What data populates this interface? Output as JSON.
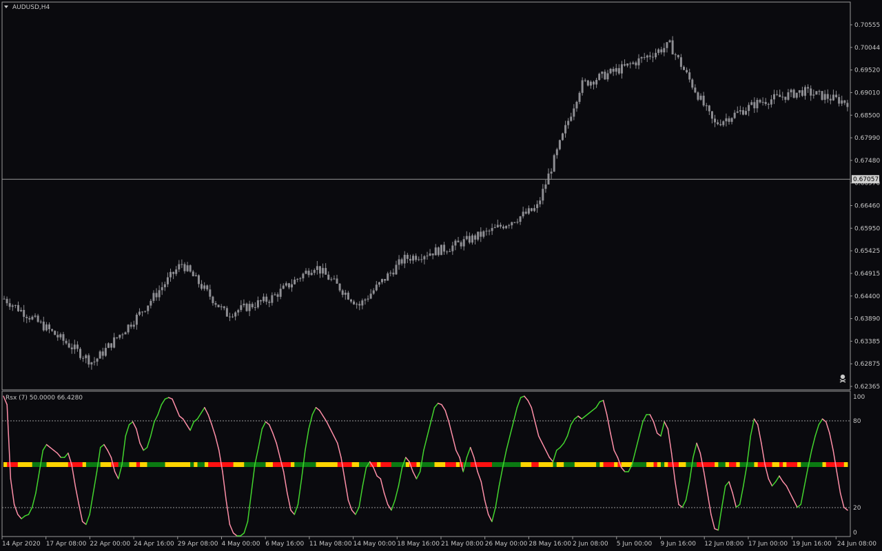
{
  "window": {
    "symbol_label": "AUDUSD,H4"
  },
  "colors": {
    "background": "#0a0a0e",
    "candle": "#8e8e93",
    "axis_text": "#c8c8c8",
    "grid": "#9a9a9a",
    "rsx_up": "#43d62e",
    "rsx_down": "#ff8fa8",
    "state_neutral": "#ffd400",
    "state_bull": "#0b7a12",
    "state_bear": "#ff1010"
  },
  "main": {
    "price_axis_labels": [
      "0.70555",
      "0.70044",
      "0.69520",
      "0.69010",
      "0.68500",
      "0.67990",
      "0.67480",
      "0.66970",
      "0.66460",
      "0.65950",
      "0.65425",
      "0.64915",
      "0.64400",
      "0.63890",
      "0.63385",
      "0.62875",
      "0.62365"
    ],
    "price_axis_min": 0.62365,
    "price_axis_max": 0.70555,
    "current_price": "0.67057",
    "current_price_value": 0.67057
  },
  "indicator": {
    "label": "Rsx (7) 50.0000 66.4280",
    "axis_labels": [
      "100",
      "80",
      "20",
      "0"
    ],
    "levels": [
      0,
      20,
      80,
      100
    ]
  },
  "time_axis_labels": [
    "14 Apr 2020",
    "17 Apr 08:00",
    "22 Apr 00:00",
    "24 Apr 16:00",
    "29 Apr 08:00",
    "4 May 00:00",
    "6 May 16:00",
    "11 May 08:00",
    "14 May 00:00",
    "18 May 16:00",
    "21 May 08:00",
    "26 May 00:00",
    "28 May 16:00",
    "2 Jun 08:00",
    "5 Jun 00:00",
    "9 Jun 16:00",
    "12 Jun 08:00",
    "17 Jun 00:00",
    "19 Jun 16:00",
    "24 Jun 08:00"
  ],
  "chart_data": {
    "type": "candlestick",
    "symbol": "AUDUSD",
    "timeframe": "H4",
    "price_range": [
      0.62365,
      0.70555
    ],
    "price_trend_points": [
      {
        "t": "14 Apr 2020",
        "price": 0.6435
      },
      {
        "t": "17 Apr 08:00",
        "price": 0.6365
      },
      {
        "t": "22 Apr 00:00",
        "price": 0.629
      },
      {
        "t": "24 Apr 16:00",
        "price": 0.6395
      },
      {
        "t": "29 Apr 08:00",
        "price": 0.6515
      },
      {
        "t": "4 May 00:00",
        "price": 0.64
      },
      {
        "t": "6 May 16:00",
        "price": 0.6435
      },
      {
        "t": "11 May 08:00",
        "price": 0.651
      },
      {
        "t": "14 May 00:00",
        "price": 0.642
      },
      {
        "t": "18 May 16:00",
        "price": 0.6525
      },
      {
        "t": "21 May 08:00",
        "price": 0.655
      },
      {
        "t": "26 May 00:00",
        "price": 0.659
      },
      {
        "t": "28 May 16:00",
        "price": 0.664
      },
      {
        "t": "2 Jun 08:00",
        "price": 0.692
      },
      {
        "t": "5 Jun 00:00",
        "price": 0.696
      },
      {
        "t": "9 Jun 16:00",
        "price": 0.701
      },
      {
        "t": "12 Jun 08:00",
        "price": 0.683
      },
      {
        "t": "17 Jun 00:00",
        "price": 0.688
      },
      {
        "t": "19 Jun 16:00",
        "price": 0.6905
      },
      {
        "t": "24 Jun 08:00",
        "price": 0.688
      }
    ],
    "indicator": {
      "name": "Rsx (7)",
      "range": [
        0,
        100
      ],
      "levels": [
        20,
        80
      ],
      "values": [
        98,
        92,
        40,
        22,
        15,
        12,
        14,
        15,
        20,
        30,
        45,
        60,
        64,
        62,
        60,
        58,
        55,
        55,
        58,
        50,
        35,
        22,
        10,
        8,
        15,
        30,
        45,
        62,
        64,
        60,
        55,
        45,
        40,
        50,
        70,
        78,
        80,
        75,
        65,
        60,
        62,
        70,
        80,
        85,
        92,
        96,
        97,
        96,
        90,
        84,
        82,
        78,
        74,
        80,
        82,
        86,
        90,
        85,
        78,
        70,
        60,
        45,
        25,
        8,
        2,
        0,
        0,
        2,
        10,
        30,
        50,
        62,
        75,
        80,
        78,
        72,
        65,
        55,
        45,
        30,
        18,
        15,
        22,
        40,
        60,
        75,
        85,
        90,
        88,
        84,
        80,
        75,
        70,
        65,
        55,
        40,
        25,
        18,
        15,
        20,
        35,
        48,
        52,
        48,
        42,
        40,
        30,
        22,
        18,
        25,
        35,
        48,
        55,
        52,
        45,
        40,
        45,
        60,
        70,
        80,
        90,
        93,
        92,
        88,
        80,
        70,
        60,
        55,
        45,
        55,
        62,
        55,
        45,
        38,
        25,
        15,
        10,
        20,
        35,
        48,
        60,
        70,
        80,
        90,
        97,
        98,
        95,
        90,
        80,
        70,
        65,
        60,
        55,
        52,
        60,
        62,
        65,
        70,
        78,
        82,
        84,
        82,
        84,
        86,
        88,
        90,
        94,
        95,
        85,
        72,
        60,
        55,
        48,
        45,
        45,
        50,
        60,
        70,
        80,
        85,
        85,
        80,
        72,
        70,
        80,
        75,
        58,
        38,
        22,
        20,
        25,
        38,
        55,
        65,
        58,
        45,
        30,
        15,
        5,
        4,
        20,
        35,
        38,
        30,
        20,
        22,
        35,
        50,
        70,
        82,
        78,
        65,
        50,
        40,
        35,
        38,
        42,
        38,
        35,
        30,
        25,
        20,
        22,
        35,
        48,
        60,
        70,
        78,
        82,
        80,
        72,
        60,
        45,
        30,
        20,
        18
      ]
    }
  }
}
